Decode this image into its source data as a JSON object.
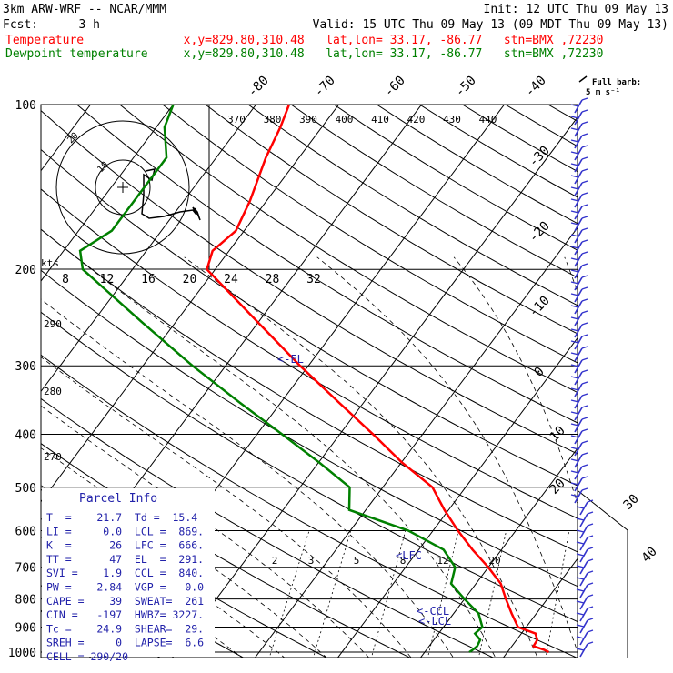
{
  "header": {
    "title": "3km ARW-WRF -- NCAR/MMM",
    "init": "Init: 12 UTC Thu 09 May 13",
    "fcst_label": "Fcst:",
    "fcst_value": "3 h",
    "valid": "Valid: 15 UTC Thu 09 May 13 (09 MDT Thu 09 May 13)",
    "temp_line": "Temperature              x,y=829.80,310.48   lat,lon= 33.17, -86.77   stn=BMX ,72230",
    "dew_line": "Dewpoint temperature     x,y=829.80,310.48   lat,lon= 33.17, -86.77   stn=BMX ,72230"
  },
  "colors": {
    "temperature": "#ff0000",
    "dewpoint": "#008000",
    "barbs": "#3333cc",
    "parcel_text": "#2222aa"
  },
  "chart_data": {
    "type": "line",
    "title": "Skew-T log-P diagram",
    "ylabel": "Pressure (hPa)",
    "xlabel": "Temperature (C)",
    "pressure_ticks": [
      100,
      200,
      300,
      400,
      500,
      600,
      700,
      800,
      900,
      1000
    ],
    "pressure_labels": [
      "100",
      "200",
      "300",
      "400",
      "500",
      "600",
      "700",
      "800",
      "900",
      "1000"
    ],
    "isotherm_labels": [
      "-80",
      "-70",
      "-60",
      "-50",
      "-40",
      "-30",
      "-20",
      "-10",
      "0",
      "10",
      "20",
      "30",
      "40"
    ],
    "theta_e_labels": [
      "370",
      "380",
      "390",
      "400",
      "410",
      "420",
      "430",
      "440"
    ],
    "theta_labels": [
      "290",
      "280",
      "270"
    ],
    "mixing_ratio_labels": [
      "2",
      "3",
      "5",
      "8",
      "12",
      "20"
    ],
    "series": [
      {
        "name": "Temperature",
        "points": [
          [
            1000,
            25
          ],
          [
            990,
            24.2
          ],
          [
            975,
            22.6
          ],
          [
            950,
            22.5
          ],
          [
            925,
            21.7
          ],
          [
            900,
            19
          ],
          [
            850,
            17
          ],
          [
            800,
            15
          ],
          [
            750,
            13
          ],
          [
            700,
            10
          ],
          [
            650,
            6.5
          ],
          [
            600,
            3
          ],
          [
            550,
            -0.5
          ],
          [
            500,
            -4
          ],
          [
            450,
            -10
          ],
          [
            400,
            -16
          ],
          [
            350,
            -23
          ],
          [
            300,
            -31
          ],
          [
            250,
            -40
          ],
          [
            200,
            -51
          ],
          [
            185,
            -52
          ],
          [
            170,
            -51
          ],
          [
            150,
            -52
          ],
          [
            125,
            -54
          ],
          [
            110,
            -55
          ],
          [
            100,
            -56
          ]
        ]
      },
      {
        "name": "Dewpoint",
        "points": [
          [
            1000,
            15.4
          ],
          [
            990,
            15.6
          ],
          [
            975,
            15.8
          ],
          [
            950,
            15.6
          ],
          [
            925,
            14.4
          ],
          [
            900,
            14.7
          ],
          [
            850,
            13
          ],
          [
            800,
            10
          ],
          [
            750,
            7
          ],
          [
            700,
            6
          ],
          [
            650,
            3
          ],
          [
            600,
            -3
          ],
          [
            550,
            -12
          ],
          [
            500,
            -14
          ],
          [
            450,
            -20
          ],
          [
            400,
            -27
          ],
          [
            350,
            -35
          ],
          [
            300,
            -44
          ],
          [
            250,
            -54
          ],
          [
            200,
            -66
          ],
          [
            185,
            -68
          ],
          [
            170,
            -66
          ],
          [
            150,
            -66
          ],
          [
            125,
            -66
          ],
          [
            110,
            -69
          ],
          [
            100,
            -70
          ]
        ]
      }
    ]
  },
  "annotations": {
    "el": "<-EL",
    "lfc": "<LFC",
    "ccl": "<-CCL",
    "lcl": "<-LCL",
    "kts": "kts"
  },
  "hodograph": {
    "ring_labels": [
      "20",
      "10"
    ],
    "speed_labels": [
      "8",
      "12",
      "16",
      "20",
      "24",
      "28",
      "32"
    ]
  },
  "parcel_info": {
    "title": "Parcel Info",
    "rows": [
      "T  =    21.7  Td =  15.4",
      "LI =     0.0  LCL =  869.",
      "K  =      26  LFC =  666.",
      "TT =      47  EL  =  291.",
      "SVI =    1.9  CCL =  840.",
      "PW =    2.84  VGP =   0.0",
      "CAPE =    39  SWEAT=  261",
      "CIN =   -197  HWBZ= 3227.",
      "Tc =    24.9  SHEAR=  29.",
      "SREH =     0  LAPSE=  6.6",
      "CELL = 290/20"
    ]
  },
  "barbs": {
    "title": "Full barb:",
    "unit": "5 m s⁻¹"
  }
}
